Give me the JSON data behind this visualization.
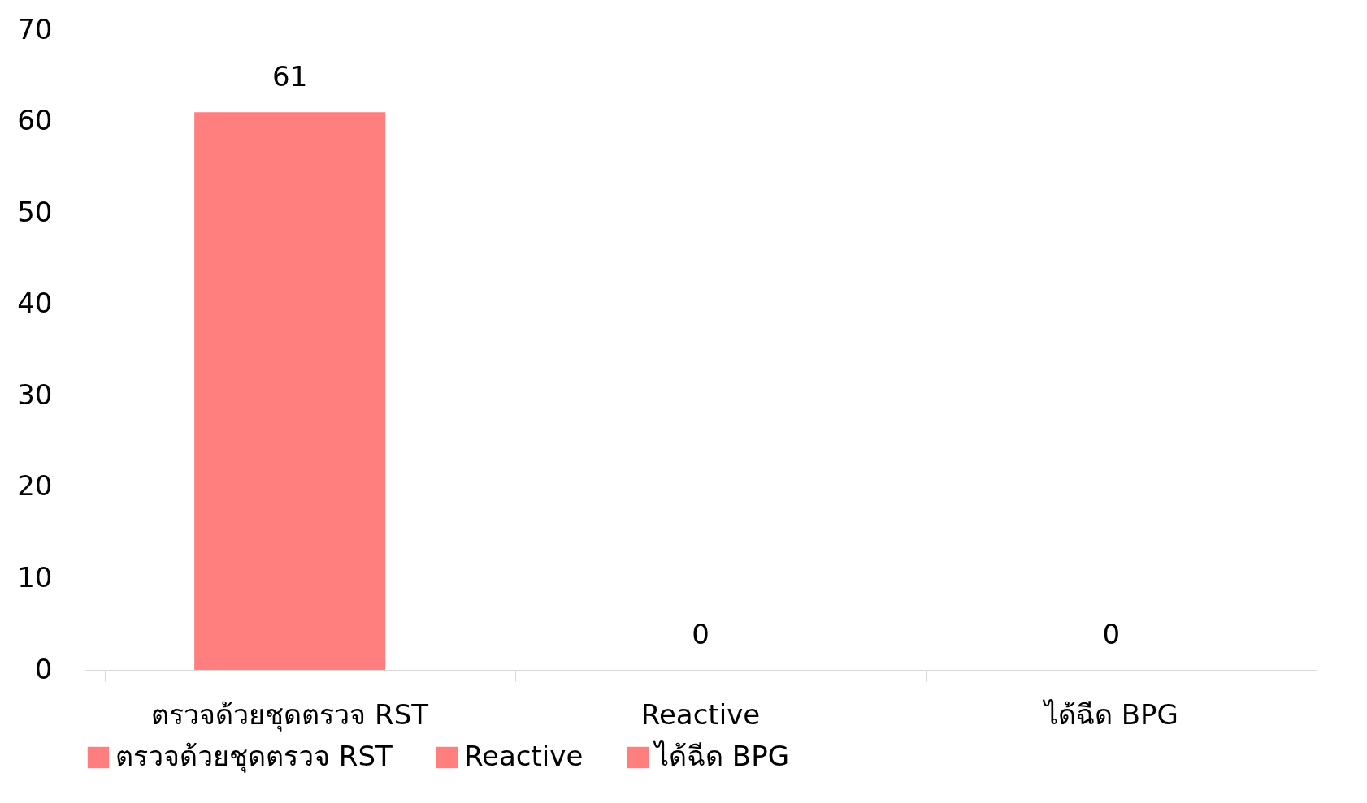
{
  "chart_data": {
    "type": "bar",
    "stacked": true,
    "categories": [
      "ตรวจด้วยชุดตรวจ RST",
      "Reactive",
      "ได้ฉีด BPG"
    ],
    "series": [
      {
        "name": "ตรวจด้วยชุดตรวจ RST",
        "color": "#ff7f7f",
        "values": [
          61,
          null,
          null
        ]
      },
      {
        "name": "Reactive",
        "color": "#ff7f7f",
        "values": [
          null,
          0,
          null
        ]
      },
      {
        "name": "ได้ฉีด BPG",
        "color": "#ff7f7f",
        "values": [
          null,
          null,
          0
        ]
      }
    ],
    "ylim": [
      0,
      70
    ],
    "yticks": [
      0,
      10,
      20,
      30,
      40,
      50,
      60,
      70
    ],
    "grid": false,
    "legend": "bottom",
    "data_labels": true
  }
}
